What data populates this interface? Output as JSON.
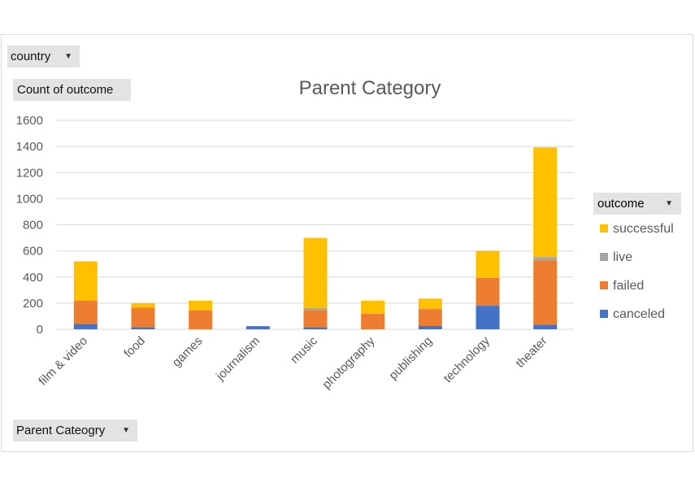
{
  "filters": {
    "country": "country",
    "count_label": "Count of outcome",
    "axis_field": "Parent Cateogry",
    "legend_field": "outcome"
  },
  "colors": {
    "canceled": "#4472c4",
    "failed": "#ed7d31",
    "live": "#a5a5a5",
    "successful": "#ffc000",
    "gridline": "#d9d9d9",
    "text": "#595959"
  },
  "chart_data": {
    "type": "bar",
    "stacked": true,
    "title": "Parent Category",
    "xlabel": "",
    "ylabel": "",
    "ylim": [
      0,
      1600
    ],
    "yticks": [
      0,
      200,
      400,
      600,
      800,
      1000,
      1200,
      1400,
      1600
    ],
    "grid": true,
    "legend_position": "right",
    "categories": [
      "film & video",
      "food",
      "games",
      "journalism",
      "music",
      "photography",
      "publishing",
      "technology",
      "theater"
    ],
    "series": [
      {
        "name": "canceled",
        "values": [
          40,
          15,
          0,
          24,
          15,
          0,
          25,
          180,
          35
        ]
      },
      {
        "name": "failed",
        "values": [
          180,
          150,
          145,
          0,
          130,
          120,
          130,
          213,
          493
        ]
      },
      {
        "name": "live",
        "values": [
          0,
          0,
          0,
          0,
          18,
          0,
          0,
          0,
          25
        ]
      },
      {
        "name": "successful",
        "values": [
          300,
          35,
          75,
          0,
          537,
          100,
          80,
          207,
          840
        ]
      }
    ]
  },
  "legend": [
    {
      "label": "successful",
      "key": "successful"
    },
    {
      "label": "live",
      "key": "live"
    },
    {
      "label": "failed",
      "key": "failed"
    },
    {
      "label": "canceled",
      "key": "canceled"
    }
  ]
}
